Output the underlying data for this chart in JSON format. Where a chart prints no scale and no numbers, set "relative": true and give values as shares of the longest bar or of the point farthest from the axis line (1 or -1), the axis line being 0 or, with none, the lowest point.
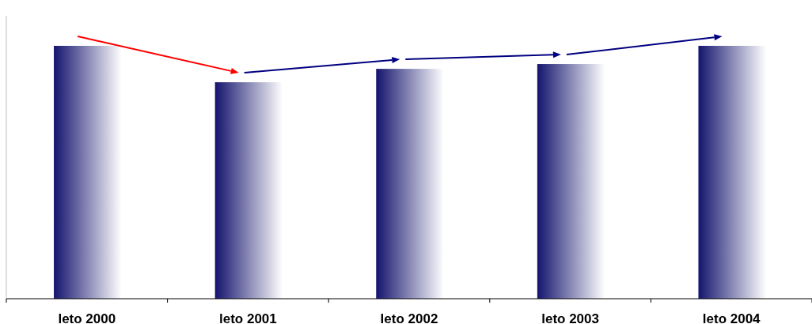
{
  "chart_data": {
    "type": "bar",
    "categories": [
      "leto 2000",
      "leto 2001",
      "leto 2002",
      "leto 2003",
      "leto 2004"
    ],
    "values": [
      1,
      0.856,
      0.909,
      0.928,
      1
    ],
    "color": "#14146e",
    "relative": true
  }
}
